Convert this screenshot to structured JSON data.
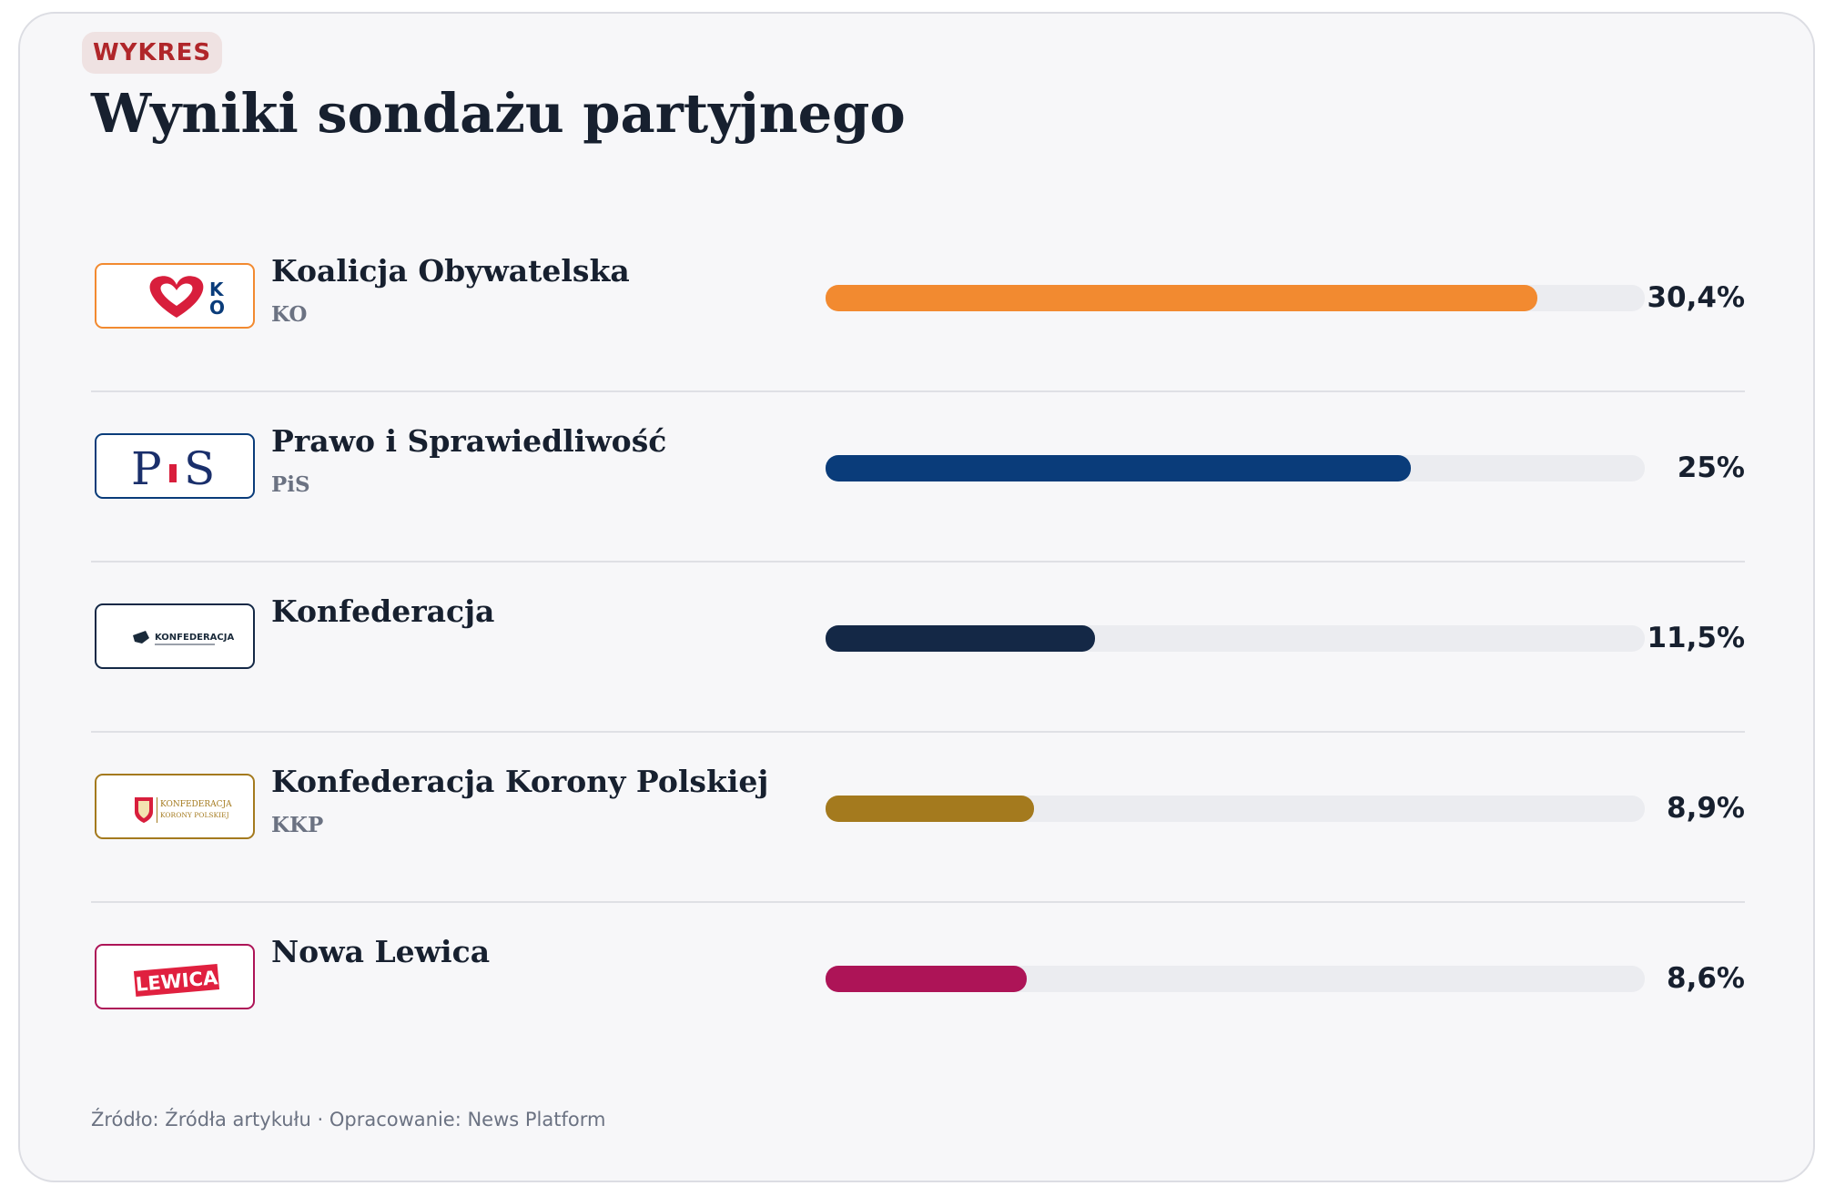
{
  "badge": "WYKRES",
  "title": "Wyniki sondażu partyjnego",
  "source": "Źródło: Źródła artykułu · Opracowanie: News Platform",
  "logo_texts": {
    "ko": "KO",
    "pis": "PiS",
    "konfederacja": "KONFEDERACJA",
    "kkp_line1": "KONFEDERACJA",
    "kkp_line2": "KORONY POLSKIEJ",
    "lewica": "LEWICA"
  },
  "chart_data": {
    "type": "bar",
    "orientation": "horizontal",
    "title": "Wyniki sondażu partyjnego",
    "unit": "%",
    "xlim": [
      0,
      35
    ],
    "grid": false,
    "categories": [
      "Koalicja Obywatelska",
      "Prawo i Sprawiedliwość",
      "Konfederacja",
      "Konfederacja Korony Polskiej",
      "Nowa Lewica"
    ],
    "abbreviations": [
      "KO",
      "PiS",
      "",
      "KKP",
      ""
    ],
    "values": [
      30.4,
      25,
      11.5,
      8.9,
      8.6
    ],
    "value_labels": [
      "30,4%",
      "25%",
      "11,5%",
      "8,9%",
      "8,6%"
    ],
    "colors": [
      "#f28a30",
      "#0a3c7a",
      "#142846",
      "#a47a1e",
      "#ad1457"
    ],
    "logo_icons": [
      "ko-heart-logo",
      "pis-logo",
      "konfederacja-logo",
      "kkp-logo",
      "lewica-logo"
    ]
  }
}
